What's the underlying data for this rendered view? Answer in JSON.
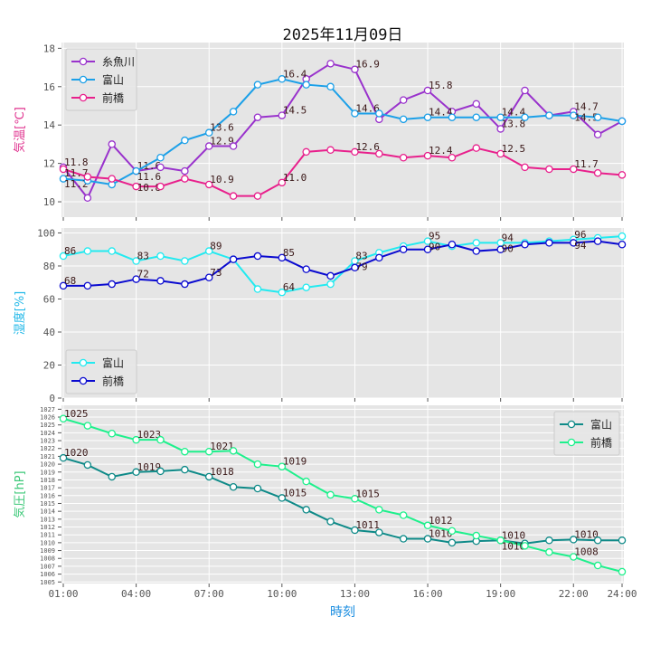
{
  "chart_data": [
    {
      "type": "line",
      "title": "2025年11月09日",
      "ylabel": "気温[℃]",
      "ylabel_color": "#e0338f",
      "ylim": [
        9.2,
        18.3
      ],
      "yticks": [
        10,
        12,
        14,
        16,
        18
      ],
      "grid": true,
      "legend": "top-left",
      "label_every_hours": 3,
      "label_decimals": 1,
      "x": [
        "01:00",
        "02:00",
        "03:00",
        "04:00",
        "05:00",
        "06:00",
        "07:00",
        "08:00",
        "09:00",
        "10:00",
        "11:00",
        "12:00",
        "13:00",
        "14:00",
        "15:00",
        "16:00",
        "17:00",
        "18:00",
        "19:00",
        "20:00",
        "21:00",
        "22:00",
        "23:00",
        "24:00"
      ],
      "series": [
        {
          "name": "糸魚川",
          "color": "#9932cc",
          "values": [
            11.8,
            10.2,
            13.0,
            11.6,
            11.8,
            11.6,
            12.9,
            12.9,
            14.4,
            14.5,
            16.4,
            17.2,
            16.9,
            14.3,
            15.3,
            15.8,
            14.7,
            15.1,
            13.8,
            15.8,
            14.5,
            14.7,
            13.5,
            14.2
          ]
        },
        {
          "name": "富山",
          "color": "#1ca0e8",
          "values": [
            11.2,
            11.1,
            10.9,
            11.6,
            12.3,
            13.2,
            13.6,
            14.7,
            16.1,
            16.4,
            16.1,
            16.0,
            14.6,
            14.6,
            14.3,
            14.4,
            14.4,
            14.4,
            14.4,
            14.4,
            14.5,
            14.5,
            14.4,
            14.2
          ]
        },
        {
          "name": "前橋",
          "color": "#e8208c",
          "values": [
            11.7,
            11.3,
            11.2,
            10.8,
            10.8,
            11.2,
            10.9,
            10.3,
            10.3,
            11.0,
            12.6,
            12.7,
            12.6,
            12.5,
            12.3,
            12.4,
            12.3,
            12.8,
            12.5,
            11.8,
            11.7,
            11.7,
            11.5,
            11.4
          ]
        }
      ]
    },
    {
      "type": "line",
      "ylabel": "湿度[%]",
      "ylabel_color": "#22b8e8",
      "ylim": [
        0,
        103
      ],
      "yticks": [
        0,
        20,
        40,
        60,
        80,
        100
      ],
      "grid": true,
      "legend": "bottom-left",
      "label_every_hours": 3,
      "label_decimals": 0,
      "series": [
        {
          "name": "富山",
          "color": "#22eaf0",
          "values": [
            86,
            89,
            89,
            83,
            86,
            83,
            89,
            84,
            66,
            64,
            67,
            69,
            83,
            88,
            92,
            95,
            92,
            94,
            94,
            94,
            95,
            96,
            97,
            98
          ]
        },
        {
          "name": "前橋",
          "color": "#0a0ad0",
          "values": [
            68,
            68,
            69,
            72,
            71,
            69,
            73,
            84,
            86,
            85,
            78,
            74,
            79,
            85,
            90,
            90,
            93,
            89,
            90,
            93,
            94,
            94,
            95,
            93
          ]
        }
      ]
    },
    {
      "type": "line",
      "ylabel": "気圧[hP]",
      "ylabel_color": "#3cc878",
      "xlabel": "時刻",
      "xlabel_color": "#1c8ee0",
      "ylim": [
        1004.8,
        1027.5
      ],
      "yticks": [
        1005,
        1006,
        1007,
        1008,
        1009,
        1010,
        1011,
        1012,
        1013,
        1014,
        1015,
        1016,
        1017,
        1018,
        1019,
        1020,
        1021,
        1022,
        1023,
        1024,
        1025,
        1026,
        1027
      ],
      "xticks": [
        "01:00",
        "04:00",
        "07:00",
        "10:00",
        "13:00",
        "16:00",
        "19:00",
        "22:00",
        "24:00"
      ],
      "grid": true,
      "legend": "top-right",
      "label_every_hours": 3,
      "label_decimals": "floor",
      "series": [
        {
          "name": "富山",
          "color": "#0e8a88",
          "values": [
            1020.8,
            1019.9,
            1018.4,
            1019.0,
            1019.1,
            1019.3,
            1018.4,
            1017.1,
            1016.9,
            1015.7,
            1014.2,
            1012.7,
            1011.6,
            1011.3,
            1010.5,
            1010.5,
            1010.0,
            1010.2,
            1010.3,
            1009.9,
            1010.3,
            1010.4,
            1010.3,
            1010.3
          ]
        },
        {
          "name": "前橋",
          "color": "#1ef08c",
          "values": [
            1025.8,
            1024.9,
            1023.9,
            1023.1,
            1023.1,
            1021.6,
            1021.6,
            1021.7,
            1020.0,
            1019.7,
            1017.8,
            1016.1,
            1015.6,
            1014.2,
            1013.5,
            1012.2,
            1011.5,
            1010.9,
            1010.3,
            1009.6,
            1008.8,
            1008.2,
            1007.1,
            1006.3
          ]
        }
      ]
    }
  ]
}
